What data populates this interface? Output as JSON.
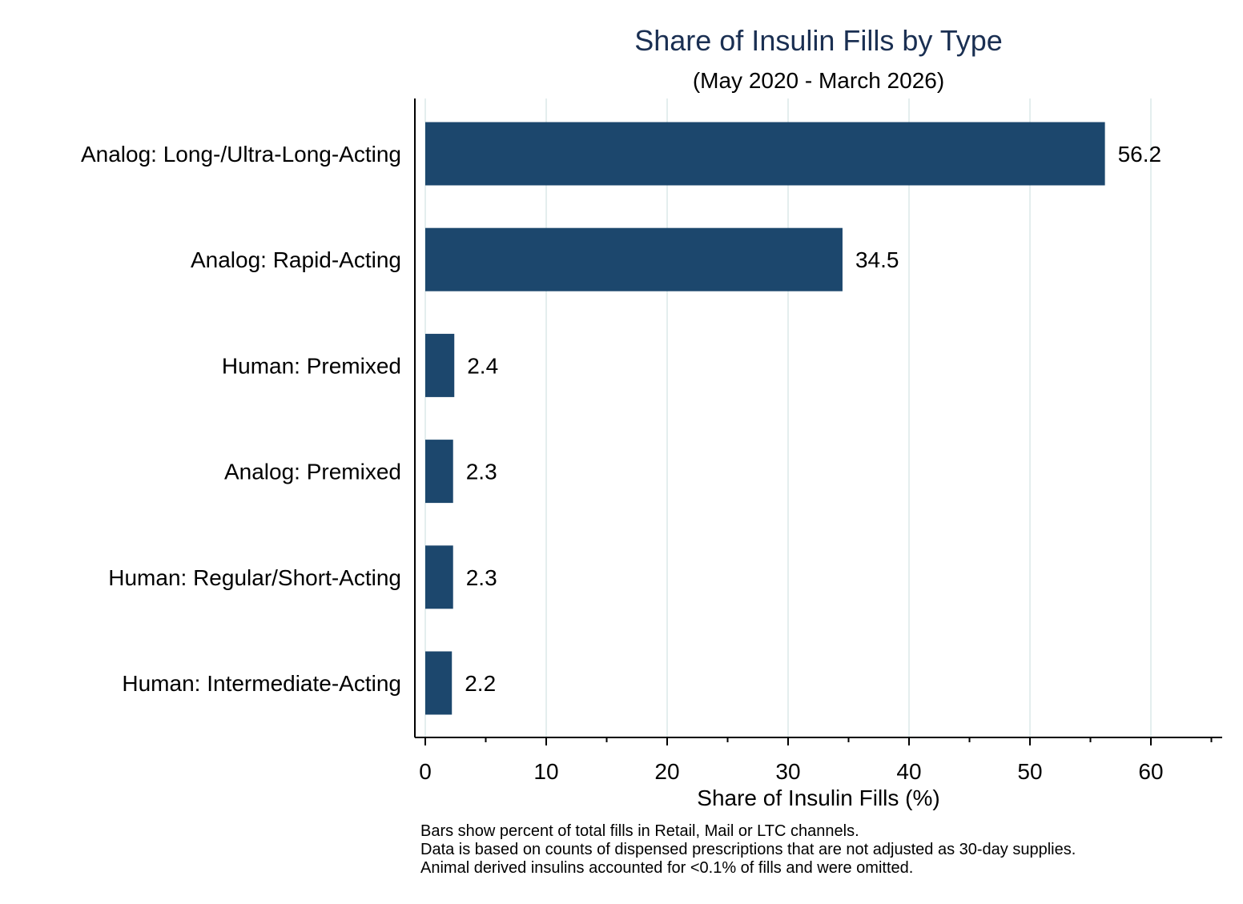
{
  "colors": {
    "bar": "#1c476d",
    "title": "#1a2f52",
    "grid": "#e4eeee",
    "axis": "#000000",
    "text": "#000000",
    "background": "#ffffff"
  },
  "notes": [
    "Bars show percent of total fills in Retail, Mail or LTC channels.",
    "Data is based on counts of dispensed prescriptions that are not adjusted as 30-day supplies.",
    "Animal derived insulins accounted for <0.1% of fills and were omitted."
  ],
  "chart_data": {
    "type": "bar",
    "orientation": "horizontal",
    "title": "Share of Insulin Fills by Type",
    "subtitle": "(May 2020 - March 2026)",
    "xlabel": "Share of Insulin Fills (%)",
    "ylabel": "",
    "categories": [
      "Analog: Long-/Ultra-Long-Acting",
      "Analog: Rapid-Acting",
      "Human: Premixed",
      "Analog: Premixed",
      "Human: Regular/Short-Acting",
      "Human: Intermediate-Acting"
    ],
    "values": [
      56.2,
      34.5,
      2.4,
      2.3,
      2.3,
      2.2
    ],
    "data_labels": [
      "56.2",
      "34.5",
      "2.4",
      "2.3",
      "2.3",
      "2.2"
    ],
    "xlim": [
      0,
      65
    ],
    "xticks": [
      0,
      10,
      20,
      30,
      40,
      50,
      60
    ],
    "xtick_labels": [
      "0",
      "10",
      "20",
      "30",
      "40",
      "50",
      "60"
    ],
    "minor_xticks": [
      5,
      15,
      25,
      35,
      45,
      55,
      65
    ],
    "grid": true,
    "legend": "none"
  }
}
